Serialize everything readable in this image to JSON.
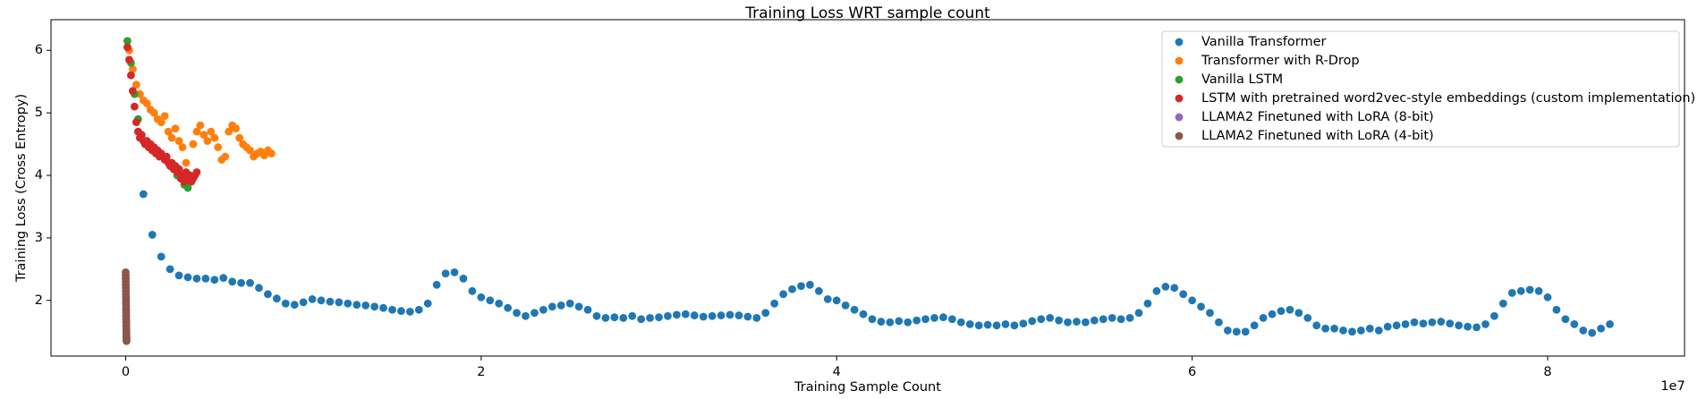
{
  "chart_data": {
    "type": "scatter",
    "title": "Training Loss WRT sample count",
    "xlabel": "Training Sample Count",
    "ylabel": "Training Loss (Cross Entropy)",
    "x_offset_label": "1e7",
    "xlim": [
      -4200000,
      87700000
    ],
    "ylim": [
      1.11,
      6.49
    ],
    "xticks": [
      0,
      {
        "value": 20000000,
        "label": "2"
      },
      {
        "value": 40000000,
        "label": "4"
      },
      {
        "value": 60000000,
        "label": "6"
      },
      {
        "value": 80000000,
        "label": "8"
      }
    ],
    "yticks": [
      2,
      3,
      4,
      5,
      6
    ],
    "grid": false,
    "legend_position": "upper right",
    "series": [
      {
        "name": "Vanilla Transformer",
        "color": "#1f77b4",
        "x": [
          1000000,
          1500000,
          2000000,
          2500000,
          3000000,
          3500000,
          4000000,
          4500000,
          5000000,
          5500000,
          6000000,
          6500000,
          7000000,
          7500000,
          8000000,
          8500000,
          9000000,
          9500000,
          10000000,
          10500000,
          11000000,
          11500000,
          12000000,
          12500000,
          13000000,
          13500000,
          14000000,
          14500000,
          15000000,
          15500000,
          16000000,
          16500000,
          17000000,
          17500000,
          18000000,
          18500000,
          19000000,
          19500000,
          20000000,
          20500000,
          21000000,
          21500000,
          22000000,
          22500000,
          23000000,
          23500000,
          24000000,
          24500000,
          25000000,
          25500000,
          26000000,
          26500000,
          27000000,
          27500000,
          28000000,
          28500000,
          29000000,
          29500000,
          30000000,
          30500000,
          31000000,
          31500000,
          32000000,
          32500000,
          33000000,
          33500000,
          34000000,
          34500000,
          35000000,
          35500000,
          36000000,
          36500000,
          37000000,
          37500000,
          38000000,
          38500000,
          39000000,
          39500000,
          40000000,
          40500000,
          41000000,
          41500000,
          42000000,
          42500000,
          43000000,
          43500000,
          44000000,
          44500000,
          45000000,
          45500000,
          46000000,
          46500000,
          47000000,
          47500000,
          48000000,
          48500000,
          49000000,
          49500000,
          50000000,
          50500000,
          51000000,
          51500000,
          52000000,
          52500000,
          53000000,
          53500000,
          54000000,
          54500000,
          55000000,
          55500000,
          56000000,
          56500000,
          57000000,
          57500000,
          58000000,
          58500000,
          59000000,
          59500000,
          60000000,
          60500000,
          61000000,
          61500000,
          62000000,
          62500000,
          63000000,
          63500000,
          64000000,
          64500000,
          65000000,
          65500000,
          66000000,
          66500000,
          67000000,
          67500000,
          68000000,
          68500000,
          69000000,
          69500000,
          70000000,
          70500000,
          71000000,
          71500000,
          72000000,
          72500000,
          73000000,
          73500000,
          74000000,
          74500000,
          75000000,
          75500000,
          76000000,
          76500000,
          77000000,
          77500000,
          78000000,
          78500000,
          79000000,
          79500000,
          80000000,
          80500000,
          81000000,
          81500000,
          82000000,
          82500000,
          83000000,
          83500000
        ],
        "values": [
          3.7,
          3.05,
          2.7,
          2.5,
          2.4,
          2.37,
          2.35,
          2.35,
          2.33,
          2.36,
          2.3,
          2.28,
          2.28,
          2.2,
          2.1,
          2.03,
          1.95,
          1.93,
          1.97,
          2.02,
          2.0,
          1.98,
          1.97,
          1.95,
          1.93,
          1.92,
          1.9,
          1.88,
          1.85,
          1.83,
          1.82,
          1.85,
          1.95,
          2.25,
          2.43,
          2.45,
          2.35,
          2.15,
          2.05,
          2.0,
          1.95,
          1.88,
          1.8,
          1.75,
          1.8,
          1.85,
          1.9,
          1.92,
          1.95,
          1.9,
          1.85,
          1.75,
          1.72,
          1.73,
          1.72,
          1.75,
          1.7,
          1.72,
          1.73,
          1.75,
          1.77,
          1.78,
          1.76,
          1.74,
          1.75,
          1.76,
          1.77,
          1.76,
          1.74,
          1.72,
          1.8,
          1.95,
          2.1,
          2.18,
          2.23,
          2.25,
          2.15,
          2.02,
          2.0,
          1.92,
          1.85,
          1.78,
          1.7,
          1.66,
          1.65,
          1.67,
          1.65,
          1.68,
          1.7,
          1.72,
          1.73,
          1.7,
          1.65,
          1.62,
          1.6,
          1.61,
          1.6,
          1.62,
          1.6,
          1.63,
          1.67,
          1.7,
          1.72,
          1.68,
          1.65,
          1.66,
          1.65,
          1.68,
          1.7,
          1.72,
          1.7,
          1.72,
          1.8,
          1.95,
          2.15,
          2.22,
          2.2,
          2.1,
          2.0,
          1.9,
          1.8,
          1.65,
          1.52,
          1.5,
          1.5,
          1.6,
          1.72,
          1.78,
          1.83,
          1.85,
          1.8,
          1.72,
          1.6,
          1.55,
          1.55,
          1.52,
          1.5,
          1.52,
          1.55,
          1.52,
          1.58,
          1.6,
          1.62,
          1.65,
          1.63,
          1.65,
          1.66,
          1.63,
          1.6,
          1.58,
          1.57,
          1.62,
          1.75,
          1.95,
          2.12,
          2.15,
          2.17,
          2.15,
          2.05,
          1.85,
          1.7,
          1.62,
          1.52,
          1.48,
          1.55,
          1.62
        ]
      },
      {
        "name": "Transformer with R-Drop",
        "color": "#ff7f0e",
        "x": [
          200000,
          400000,
          600000,
          800000,
          1000000,
          1200000,
          1400000,
          1600000,
          1800000,
          2000000,
          2200000,
          2400000,
          2600000,
          2800000,
          3000000,
          3200000,
          3400000,
          3600000,
          3800000,
          4000000,
          4200000,
          4400000,
          4600000,
          4800000,
          5000000,
          5200000,
          5400000,
          5600000,
          5800000,
          6000000,
          6200000,
          6400000,
          6600000,
          6800000,
          7000000,
          7200000,
          7400000,
          7600000,
          7800000,
          8000000,
          8200000
        ],
        "values": [
          6.0,
          5.7,
          5.45,
          5.3,
          5.2,
          5.15,
          5.05,
          5.0,
          4.9,
          4.85,
          4.95,
          4.7,
          4.6,
          4.75,
          4.55,
          4.45,
          4.2,
          4.0,
          4.5,
          4.7,
          4.8,
          4.65,
          4.55,
          4.7,
          4.6,
          4.45,
          4.25,
          4.3,
          4.7,
          4.8,
          4.75,
          4.6,
          4.5,
          4.45,
          4.4,
          4.3,
          4.35,
          4.38,
          4.32,
          4.4,
          4.35
        ]
      },
      {
        "name": "Vanilla LSTM",
        "color": "#2ca02c",
        "x": [
          100000,
          300000,
          500000,
          700000,
          900000,
          1100000,
          1300000,
          1500000,
          1700000,
          1900000,
          2100000,
          2300000,
          2500000,
          2700000,
          2900000,
          3100000,
          3300000,
          3500000
        ],
        "values": [
          6.15,
          5.8,
          5.3,
          4.9,
          4.6,
          4.5,
          4.45,
          4.4,
          4.4,
          4.35,
          4.3,
          4.25,
          4.2,
          4.1,
          4.0,
          3.95,
          3.85,
          3.8
        ]
      },
      {
        "name": "LSTM with pretrained word2vec-style embeddings (custom implementation)",
        "color": "#d62728",
        "x": [
          100000,
          200000,
          300000,
          400000,
          500000,
          600000,
          700000,
          800000,
          900000,
          1000000,
          1100000,
          1200000,
          1300000,
          1400000,
          1500000,
          1600000,
          1700000,
          1800000,
          1900000,
          2000000,
          2100000,
          2200000,
          2300000,
          2400000,
          2500000,
          2600000,
          2700000,
          2800000,
          2900000,
          3000000,
          3100000,
          3200000,
          3300000,
          3400000,
          3500000,
          3600000,
          3700000,
          3800000,
          3900000,
          4000000
        ],
        "values": [
          6.05,
          5.85,
          5.6,
          5.35,
          5.1,
          4.85,
          4.7,
          4.6,
          4.65,
          4.55,
          4.5,
          4.55,
          4.45,
          4.5,
          4.4,
          4.45,
          4.35,
          4.4,
          4.3,
          4.35,
          4.3,
          4.25,
          4.3,
          4.2,
          4.15,
          4.2,
          4.1,
          4.15,
          4.05,
          4.1,
          3.95,
          4.0,
          3.9,
          4.05,
          3.95,
          4.0,
          3.9,
          3.95,
          4.0,
          4.05
        ]
      },
      {
        "name": "LLAMA2 Finetuned with LoRA (8-bit)",
        "color": "#9467bd",
        "x": [
          4000,
          8000,
          12000,
          16000,
          20000,
          24000,
          28000,
          32000,
          36000,
          40000,
          44000,
          48000
        ],
        "values": [
          2.35,
          2.25,
          2.15,
          2.05,
          1.95,
          1.85,
          1.75,
          1.65,
          1.55,
          1.5,
          1.45,
          1.4
        ]
      },
      {
        "name": "LLAMA2 Finetuned with LoRA (4-bit)",
        "color": "#8c564b",
        "x": [
          2000,
          4000,
          6000,
          8000,
          10000,
          12000,
          14000,
          16000,
          18000,
          20000,
          22000,
          24000,
          26000,
          28000,
          30000,
          32000,
          34000,
          36000,
          38000,
          40000,
          42000,
          44000,
          46000,
          48000,
          50000
        ],
        "values": [
          2.45,
          2.4,
          2.35,
          2.3,
          2.25,
          2.2,
          2.15,
          2.1,
          2.05,
          2.0,
          1.95,
          1.9,
          1.85,
          1.8,
          1.75,
          1.7,
          1.65,
          1.6,
          1.55,
          1.5,
          1.45,
          1.42,
          1.4,
          1.37,
          1.35
        ]
      }
    ]
  }
}
